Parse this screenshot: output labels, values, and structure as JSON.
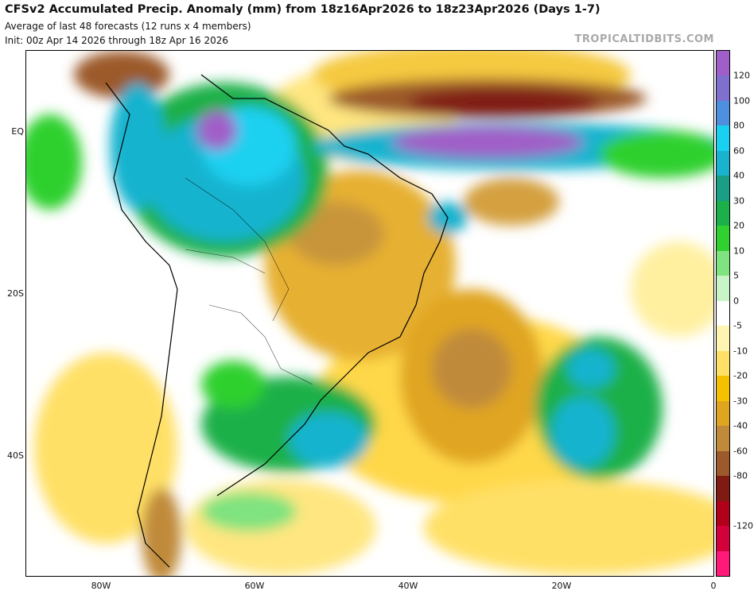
{
  "header": {
    "title": "CFSv2 Accumulated Precip. Anomaly (mm) from 18z16Apr2026 to 18z23Apr2026 (Days 1-7)",
    "subtitle": "Average of last 48 forecasts (12 runs x 4 members)",
    "init": "Init: 00z Apr 14 2026 through 18z Apr 16 2026",
    "brand": "TROPICALTIDBITS.COM"
  },
  "axes": {
    "lat_labels": [
      "EQ",
      "20S",
      "40S"
    ],
    "lon_labels": [
      "80W",
      "60W",
      "40W",
      "20W",
      "0"
    ]
  },
  "colorbar": {
    "labels": [
      "120",
      "100",
      "80",
      "60",
      "40",
      "30",
      "20",
      "10",
      "5",
      "0",
      "-5",
      "-10",
      "-20",
      "-30",
      "-40",
      "-60",
      "-80",
      "-120"
    ],
    "colors": [
      "#a05ec8",
      "#7f6fcf",
      "#4f8fe0",
      "#1ad0f0",
      "#19b3cf",
      "#1a9e86",
      "#1bb04a",
      "#2fd02f",
      "#7fe37f",
      "#c8f4c8",
      "#ffffff",
      "#fff5b0",
      "#ffe066",
      "#f5c000",
      "#e0a520",
      "#c08a3a",
      "#9c5a2c",
      "#801a12",
      "#b0001a",
      "#d4003c",
      "#ff1a7a"
    ]
  }
}
